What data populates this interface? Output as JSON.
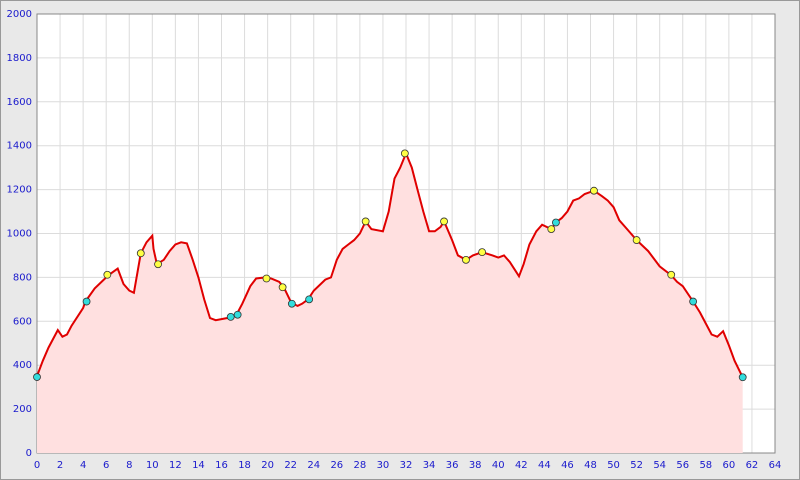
{
  "chart_data": {
    "type": "area",
    "x": [
      0,
      0.5,
      1,
      1.8,
      2.2,
      2.6,
      3,
      4,
      4.2,
      5,
      6,
      6.2,
      7,
      7.5,
      8,
      8.4,
      8.8,
      9,
      9.5,
      10,
      10.1,
      10.4,
      11,
      11.5,
      12,
      12.5,
      13,
      13.5,
      14,
      14.5,
      15,
      15.5,
      16,
      16.5,
      16.8,
      17.3,
      17.8,
      18.5,
      19,
      19.8,
      20.3,
      21,
      21.4,
      22,
      22.2,
      22.6,
      23,
      23.5,
      24,
      25,
      25.5,
      26,
      26.5,
      27,
      27.5,
      28,
      28.5,
      29,
      30,
      30.5,
      31,
      31.5,
      32,
      32.5,
      33,
      33.5,
      34,
      34.5,
      35,
      35.3,
      36,
      36.5,
      37.2,
      37.8,
      38.6,
      39.5,
      40,
      40.5,
      41,
      41.5,
      41.8,
      42.2,
      42.7,
      43.3,
      43.8,
      44.6,
      45,
      45.5,
      46,
      46.5,
      47,
      47.5,
      48.3,
      49,
      49.5,
      50,
      50.5,
      51,
      52,
      53,
      54,
      55,
      55.5,
      56,
      56.9,
      57.5,
      58,
      58.5,
      59,
      59.5,
      60,
      60.5,
      61.2
    ],
    "values": [
      350,
      420,
      480,
      560,
      530,
      540,
      580,
      660,
      690,
      750,
      800,
      810,
      840,
      770,
      740,
      730,
      850,
      910,
      960,
      990,
      930,
      860,
      880,
      920,
      950,
      960,
      955,
      880,
      800,
      700,
      615,
      605,
      610,
      615,
      620,
      630,
      680,
      760,
      795,
      800,
      795,
      780,
      755,
      690,
      680,
      670,
      680,
      700,
      740,
      790,
      800,
      880,
      930,
      950,
      970,
      1000,
      1055,
      1020,
      1010,
      1100,
      1250,
      1300,
      1365,
      1300,
      1200,
      1100,
      1010,
      1010,
      1030,
      1055,
      970,
      900,
      880,
      900,
      915,
      900,
      890,
      900,
      870,
      830,
      805,
      860,
      950,
      1010,
      1040,
      1020,
      1050,
      1070,
      1100,
      1150,
      1160,
      1180,
      1195,
      1170,
      1150,
      1120,
      1060,
      1030,
      970,
      920,
      850,
      810,
      780,
      760,
      690,
      640,
      590,
      540,
      530,
      555,
      490,
      420,
      345
    ],
    "color": "#e00000",
    "fill_color": "#ffe0e0",
    "markers": [
      {
        "color": "#ffff44",
        "x": [
          6.1,
          9,
          10.5,
          19.9,
          21.3,
          28.5,
          31.9,
          35.3,
          37.2,
          38.6,
          44.6,
          48.3,
          52,
          55
        ],
        "values": [
          812,
          910,
          860,
          795,
          755,
          1055,
          1365,
          1055,
          880,
          915,
          1020,
          1195,
          970,
          812
        ]
      },
      {
        "color": "#33dddd",
        "x": [
          0,
          4.3,
          16.8,
          17.4,
          22.1,
          23.6,
          45,
          56.9,
          61.2
        ],
        "values": [
          346,
          690,
          620,
          630,
          680,
          700,
          1050,
          690,
          345
        ]
      }
    ],
    "xlim": [
      0,
      64
    ],
    "xticks": [
      0,
      2,
      4,
      6,
      8,
      10,
      12,
      14,
      16,
      18,
      20,
      22,
      24,
      26,
      28,
      30,
      32,
      34,
      36,
      38,
      40,
      42,
      44,
      46,
      48,
      50,
      52,
      54,
      56,
      58,
      60,
      62,
      64
    ],
    "ylim": [
      0,
      2000
    ],
    "yticks": [
      0,
      200,
      400,
      600,
      800,
      1000,
      1200,
      1400,
      1600,
      1800,
      2000
    ],
    "grid": true
  }
}
